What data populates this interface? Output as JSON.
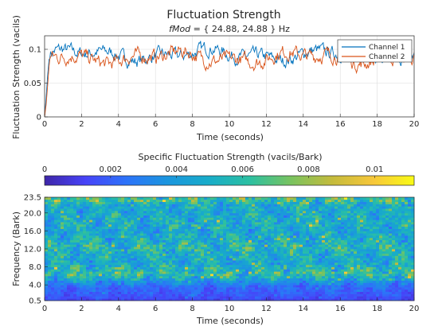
{
  "chart_data": [
    {
      "type": "line",
      "title": "Fluctuation Strength",
      "subtitle_var": "fMod",
      "subtitle_rest": " = { 24.88, 24.88 } Hz",
      "xlabel": "Time (seconds)",
      "ylabel": "Fluctuation Strength (vacils)",
      "xlim": [
        0,
        20
      ],
      "ylim": [
        0,
        0.12
      ],
      "xticks": [
        "0",
        "2",
        "4",
        "6",
        "8",
        "10",
        "12",
        "14",
        "16",
        "18",
        "20"
      ],
      "yticks": [
        "0",
        "0.05",
        "0.1"
      ],
      "grid": true,
      "legend_position": "top-right",
      "series": [
        {
          "name": "Channel 1",
          "color": "#0072bd",
          "start": [
            [
              0,
              0.0
            ],
            [
              0.08,
              0.028
            ],
            [
              0.16,
              0.06
            ],
            [
              0.24,
              0.085
            ]
          ],
          "mean": 0.092,
          "amplitude": 0.011
        },
        {
          "name": "Channel 2",
          "color": "#d95319",
          "start": [
            [
              0,
              0.0
            ],
            [
              0.08,
              0.018
            ],
            [
              0.16,
              0.045
            ],
            [
              0.24,
              0.075
            ]
          ],
          "mean": 0.088,
          "amplitude": 0.012
        }
      ]
    },
    {
      "type": "heatmap",
      "colorbar_title": "Specific Fluctuation Strength (vacils/Bark)",
      "colorbar_ticks": [
        "0",
        "0.002",
        "0.004",
        "0.006",
        "0.008",
        "0.01"
      ],
      "colorbar_tick_values": [
        0,
        0.002,
        0.004,
        0.006,
        0.008,
        0.01
      ],
      "clim": [
        0,
        0.0112
      ],
      "colormap": [
        "#3e26a8",
        "#4743f8",
        "#2c73f9",
        "#1b96de",
        "#18acc9",
        "#2cc0a1",
        "#79c35f",
        "#c4bb3c",
        "#f7c73a",
        "#f9fb15"
      ],
      "xlabel": "Time (seconds)",
      "ylabel": "Frequency (Bark)",
      "xlim": [
        0,
        20
      ],
      "ylim": [
        0.5,
        23.5
      ],
      "xticks": [
        "0",
        "2",
        "4",
        "6",
        "8",
        "10",
        "12",
        "14",
        "16",
        "18",
        "20"
      ],
      "yticks": [
        "0.5",
        "4.0",
        "8.0",
        "12.0",
        "16.0",
        "20.0",
        "23.5"
      ],
      "ytick_values": [
        0.5,
        4.0,
        8.0,
        12.0,
        16.0,
        20.0,
        23.5
      ],
      "profile_bark": [
        0.5,
        1.5,
        2.5,
        3.5,
        4.5,
        5.5,
        6.5,
        7.5,
        9.0,
        11.0,
        12.5,
        14.0,
        16.0,
        18.0,
        20.0,
        22.0,
        23.0,
        23.5
      ],
      "profile_value": [
        0.0012,
        0.0017,
        0.002,
        0.0022,
        0.0032,
        0.0048,
        0.006,
        0.0055,
        0.0046,
        0.005,
        0.0057,
        0.005,
        0.0046,
        0.005,
        0.0047,
        0.0049,
        0.0068,
        0.0055
      ]
    }
  ]
}
